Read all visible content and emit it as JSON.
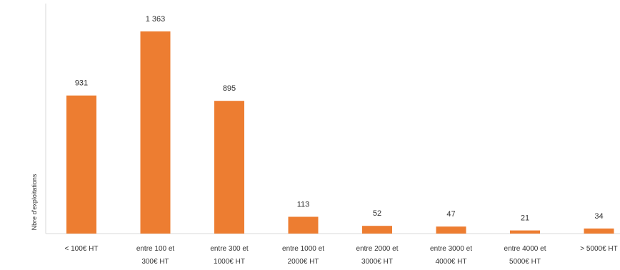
{
  "chart_data": {
    "type": "bar",
    "title": "",
    "xlabel": "",
    "ylabel": "Nbre d'exploitations",
    "categories": [
      "< 100€ HT",
      "entre 100 et 300€ HT",
      "entre 300 et 1000€ HT",
      "entre 1000 et 2000€ HT",
      "entre 2000 et 3000€ HT",
      "entre 3000 et 4000€ HT",
      "entre 4000 et 5000€ HT",
      "> 5000€ HT"
    ],
    "category_lines": [
      [
        "< 100€ HT"
      ],
      [
        "entre 100 et",
        "300€ HT"
      ],
      [
        "entre 300 et",
        "1000€ HT"
      ],
      [
        "entre 1000 et",
        "2000€ HT"
      ],
      [
        "entre 2000 et",
        "3000€ HT"
      ],
      [
        "entre 3000 et",
        "4000€ HT"
      ],
      [
        "entre 4000 et",
        "5000€ HT"
      ],
      [
        "> 5000€ HT"
      ]
    ],
    "values": [
      931,
      1363,
      895,
      113,
      52,
      47,
      21,
      34
    ],
    "data_labels": [
      "931",
      "1 363",
      "895",
      "113",
      "52",
      "47",
      "21",
      "34"
    ],
    "ylim": [
      0,
      1363
    ],
    "grid": false,
    "legend": "none",
    "bar_color": "#ed7d31"
  }
}
